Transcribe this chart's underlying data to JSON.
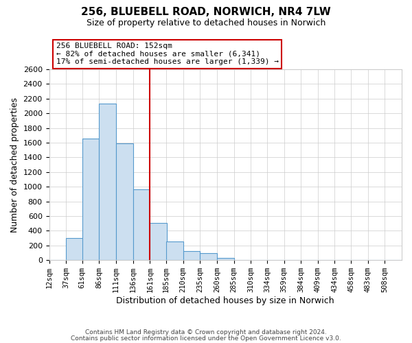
{
  "title": "256, BLUEBELL ROAD, NORWICH, NR4 7LW",
  "subtitle": "Size of property relative to detached houses in Norwich",
  "xlabel": "Distribution of detached houses by size in Norwich",
  "ylabel": "Number of detached properties",
  "bin_labels": [
    "12sqm",
    "37sqm",
    "61sqm",
    "86sqm",
    "111sqm",
    "136sqm",
    "161sqm",
    "185sqm",
    "210sqm",
    "235sqm",
    "260sqm",
    "285sqm",
    "310sqm",
    "334sqm",
    "359sqm",
    "384sqm",
    "409sqm",
    "434sqm",
    "458sqm",
    "483sqm",
    "508sqm"
  ],
  "bar_heights": [
    0,
    300,
    1660,
    2130,
    1590,
    960,
    510,
    255,
    120,
    95,
    30,
    0,
    5,
    0,
    0,
    0,
    0,
    0,
    0,
    0,
    5
  ],
  "bar_left_edges": [
    12,
    37,
    61,
    86,
    111,
    136,
    161,
    185,
    210,
    235,
    260,
    285,
    310,
    334,
    359,
    384,
    409,
    434,
    458,
    483,
    508
  ],
  "bin_width": 25,
  "property_line_x": 161,
  "annotation_text_line1": "256 BLUEBELL ROAD: 152sqm",
  "annotation_text_line2": "← 82% of detached houses are smaller (6,341)",
  "annotation_text_line3": "17% of semi-detached houses are larger (1,339) →",
  "bar_facecolor": "#ccdff0",
  "bar_edgecolor": "#5599cc",
  "line_color": "#cc0000",
  "grid_color": "#cccccc",
  "background_color": "#ffffff",
  "annotation_box_color": "#ffffff",
  "annotation_box_edgecolor": "#cc0000",
  "ylim": [
    0,
    2600
  ],
  "yticks": [
    0,
    200,
    400,
    600,
    800,
    1000,
    1200,
    1400,
    1600,
    1800,
    2000,
    2200,
    2400,
    2600
  ],
  "footer_line1": "Contains HM Land Registry data © Crown copyright and database right 2024.",
  "footer_line2": "Contains public sector information licensed under the Open Government Licence v3.0."
}
